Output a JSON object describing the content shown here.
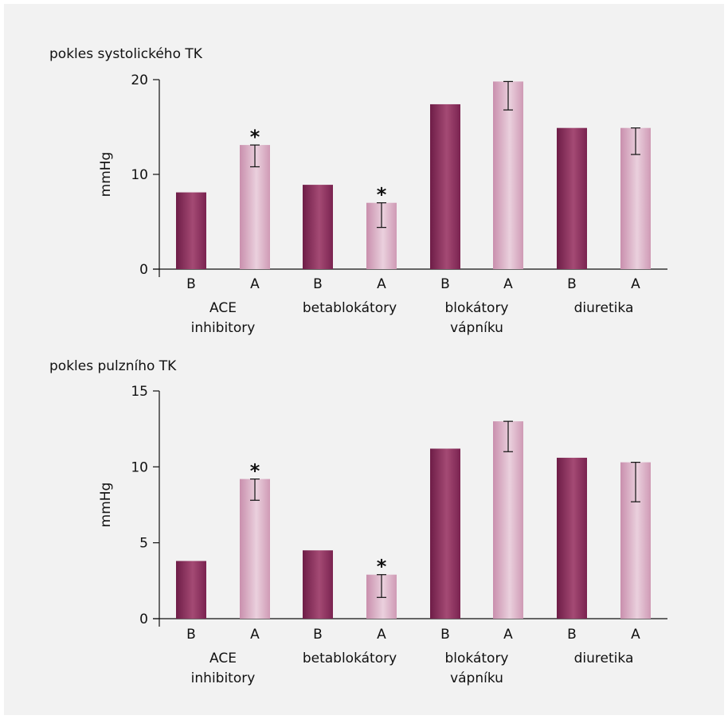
{
  "chart_data": [
    {
      "type": "bar",
      "title": "pokles systolického TK",
      "ylabel": "mmHg",
      "ylim": [
        0,
        20
      ],
      "yticks": [
        "0",
        "10",
        "20"
      ],
      "bar_labels": [
        "B",
        "A",
        "B",
        "A",
        "B",
        "A",
        "B",
        "A"
      ],
      "groups": [
        {
          "lines": [
            "ACE",
            "inhibitory"
          ]
        },
        {
          "lines": [
            "betablokátory"
          ]
        },
        {
          "lines": [
            "blokátory",
            "vápníku"
          ]
        },
        {
          "lines": [
            "diuretika"
          ]
        }
      ],
      "values": [
        8.1,
        13.1,
        8.9,
        7.0,
        17.4,
        19.8,
        14.9,
        14.9
      ],
      "error_low": [
        null,
        10.8,
        null,
        4.4,
        null,
        16.8,
        null,
        12.1
      ],
      "significance": [
        "",
        "*",
        "",
        "*",
        "",
        "",
        "",
        ""
      ],
      "colors": {
        "B": "#8e2e5c",
        "A": "#d9a8c1"
      }
    },
    {
      "type": "bar",
      "title": "pokles pulzního TK",
      "ylabel": "mmHg",
      "ylim": [
        0,
        15
      ],
      "yticks": [
        "0",
        "5",
        "10",
        "15"
      ],
      "bar_labels": [
        "B",
        "A",
        "B",
        "A",
        "B",
        "A",
        "B",
        "A"
      ],
      "groups": [
        {
          "lines": [
            "ACE",
            "inhibitory"
          ]
        },
        {
          "lines": [
            "betablokátory"
          ]
        },
        {
          "lines": [
            "blokátory",
            "vápníku"
          ]
        },
        {
          "lines": [
            "diuretika"
          ]
        }
      ],
      "values": [
        3.8,
        9.2,
        4.5,
        2.9,
        11.2,
        13.0,
        10.6,
        10.3
      ],
      "error_low": [
        null,
        7.8,
        null,
        1.4,
        null,
        11.0,
        null,
        7.7
      ],
      "significance": [
        "",
        "*",
        "",
        "*",
        "",
        "",
        "",
        ""
      ],
      "colors": {
        "B": "#8e2e5c",
        "A": "#d9a8c1"
      }
    }
  ]
}
